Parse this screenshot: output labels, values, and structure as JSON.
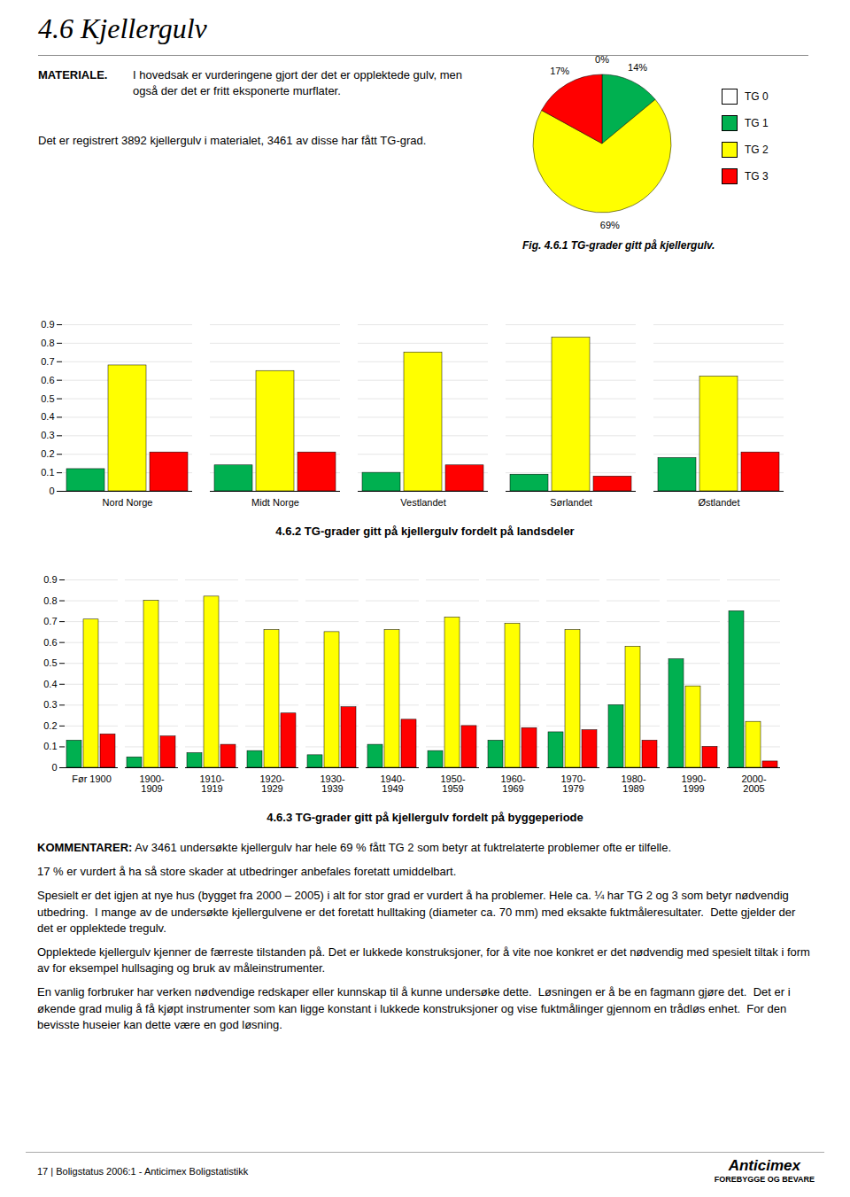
{
  "title": "4.6  Kjellergulv",
  "annotations": [
    "MATERIALE.",
    "I hovedsak er vurderingene gjort der det er opplektede gulv, men også der det er fritt eksponerte murflater.",
    "Det er registrert 3892 kjellergulv i materialet, 3461 av disse har fått TG-grad.",
    "KOMMENTARER:",
    "Av 3461 undersøkte kjellergulv har hele 69 % fått TG 2 som betyr at fuktrelaterte problemer ofte er tilfelle.",
    "17 % er vurdert å ha så store skader at utbedringer anbefales foretatt umiddelbart.",
    "Spesielt er det igjen at nye hus (bygget fra 2000 – 2005) i alt for stor grad er vurdert å ha problemer. Hele ca. ¼ har TG 2 og 3 som betyr nødvendig utbedring.  I mange av de undersøkte kjellergulvene er det foretatt hulltaking (diameter ca. 70 mm) med eksakte fuktmåleresultater.  Dette gjelder der det er opplektede tregulv.",
    "Opplektede kjellergulv kjenner de færreste tilstanden på. Det er lukkede konstruksjoner, for å vite noe konkret er det nødvendig med spesielt tiltak i form av for eksempel hullsaging og bruk av måleinstrumenter.",
    "En vanlig forbruker har verken nødvendige redskaper eller kunnskap til å kunne undersøke dette.  Løsningen er å be en fagmann gjøre det.  Det er i økende grad mulig å få kjøpt instrumenter som kan ligge konstant i lukkede konstruksjoner og vise fuktmålinger gjennom en trådløs enhet.  For den bevisste huseier kan dette være en god løsning."
  ],
  "footer": [
    "17  |  Boligstatus 2006:1 - Anticimex Boligstatistikk",
    "Anticimex",
    "FOREBYGGE OG BEVARE"
  ],
  "chart_data": [
    {
      "type": "pie",
      "title": "Fig. 4.6.1 TG-grader gitt på kjellergulv.",
      "categories": [
        "TG 0",
        "TG 1",
        "TG 2",
        "TG 3"
      ],
      "values": [
        0.001,
        14,
        69,
        17
      ],
      "value_labels": [
        "0%",
        "14%",
        "69%",
        "17%"
      ],
      "colors": [
        "#ffffff",
        "#00b050",
        "#ffff00",
        "#ff0000"
      ],
      "data_labels": true,
      "legend": "right"
    },
    {
      "type": "bar",
      "title": "4.6.2 TG-grader gitt på kjellergulv fordelt på landsdeler",
      "categories": [
        "Nord Norge",
        "Midt Norge",
        "Vestlandet",
        "Sørlandet",
        "Østlandet"
      ],
      "series": [
        {
          "name": "TG 1",
          "color": "#00b050",
          "values": [
            0.12,
            0.14,
            0.1,
            0.09,
            0.18
          ]
        },
        {
          "name": "TG 2",
          "color": "#ffff00",
          "values": [
            0.68,
            0.65,
            0.75,
            0.83,
            0.62
          ]
        },
        {
          "name": "TG 3",
          "color": "#ff0000",
          "values": [
            0.21,
            0.21,
            0.14,
            0.08,
            0.21
          ]
        }
      ],
      "ylim": [
        0,
        0.9
      ],
      "yticks": [
        0,
        0.1,
        0.2,
        0.3,
        0.4,
        0.5,
        0.6,
        0.7,
        0.8,
        0.9
      ],
      "grid": true
    },
    {
      "type": "bar",
      "title": "4.6.3 TG-grader gitt på kjellergulv fordelt på byggeperiode",
      "categories": [
        "Før 1900",
        "1900-\n1909",
        "1910-\n1919",
        "1920-\n1929",
        "1930-\n1939",
        "1940-\n1949",
        "1950-\n1959",
        "1960-\n1969",
        "1970-\n1979",
        "1980-\n1989",
        "1990-\n1999",
        "2000-\n2005"
      ],
      "series": [
        {
          "name": "TG 1",
          "color": "#00b050",
          "values": [
            0.13,
            0.05,
            0.07,
            0.08,
            0.06,
            0.11,
            0.08,
            0.13,
            0.17,
            0.3,
            0.52,
            0.75
          ]
        },
        {
          "name": "TG 2",
          "color": "#ffff00",
          "values": [
            0.71,
            0.8,
            0.82,
            0.66,
            0.65,
            0.66,
            0.72,
            0.69,
            0.66,
            0.58,
            0.39,
            0.22
          ]
        },
        {
          "name": "TG 3",
          "color": "#ff0000",
          "values": [
            0.16,
            0.15,
            0.11,
            0.26,
            0.29,
            0.23,
            0.2,
            0.19,
            0.18,
            0.13,
            0.1,
            0.03
          ]
        }
      ],
      "ylim": [
        0,
        0.9
      ],
      "yticks": [
        0,
        0.1,
        0.2,
        0.3,
        0.4,
        0.5,
        0.6,
        0.7,
        0.8,
        0.9
      ],
      "grid": true
    }
  ]
}
